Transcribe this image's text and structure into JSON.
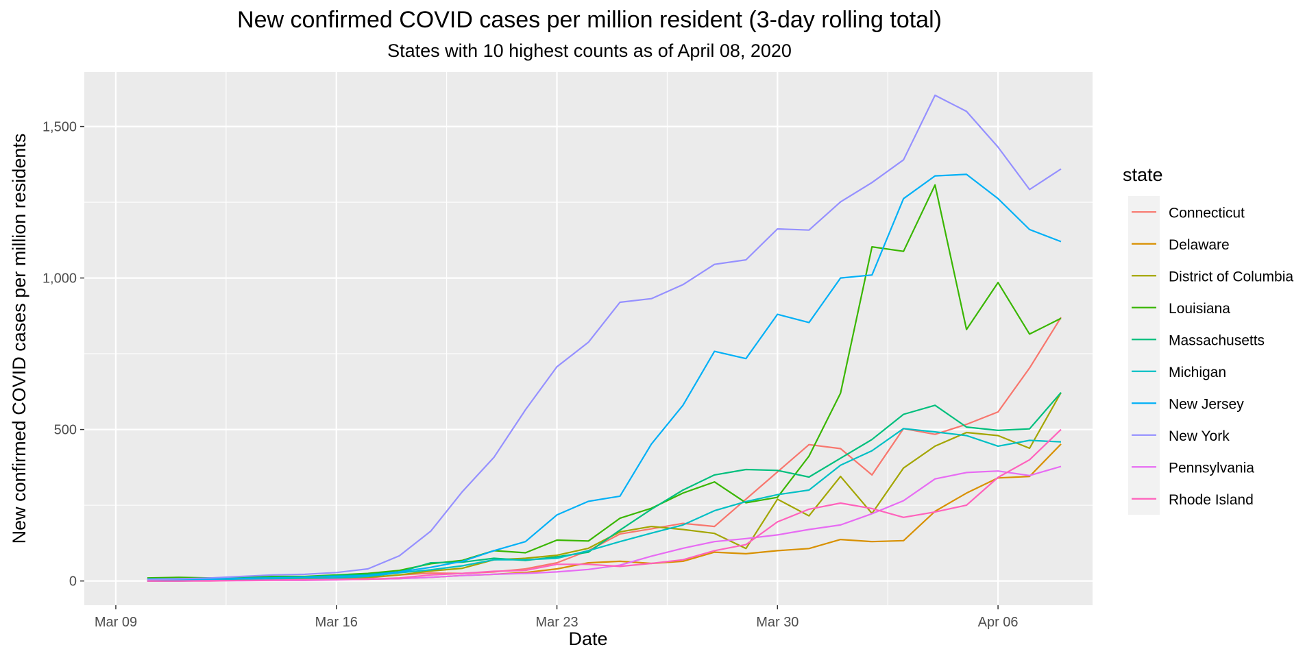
{
  "chart_data": {
    "type": "line",
    "title": "New confirmed COVID cases per million resident (3-day rolling total)",
    "subtitle": "States with 10 highest counts as of April 08, 2020",
    "xlabel": "Date",
    "ylabel": "New confirmed COVID cases per million residents",
    "x_ticks": [
      "Mar 09",
      "Mar 16",
      "Mar 23",
      "Mar 30",
      "Apr 06"
    ],
    "y_ticks": [
      "0",
      "500",
      "1,000",
      "1,500"
    ],
    "xlim": [
      "2020-03-08",
      "2020-04-09"
    ],
    "ylim": [
      -80,
      1680
    ],
    "grid": true,
    "legend_title": "state",
    "legend_position": "right",
    "x": [
      "2020-03-10",
      "2020-03-11",
      "2020-03-12",
      "2020-03-13",
      "2020-03-14",
      "2020-03-15",
      "2020-03-16",
      "2020-03-17",
      "2020-03-18",
      "2020-03-19",
      "2020-03-20",
      "2020-03-21",
      "2020-03-22",
      "2020-03-23",
      "2020-03-24",
      "2020-03-25",
      "2020-03-26",
      "2020-03-27",
      "2020-03-28",
      "2020-03-29",
      "2020-03-30",
      "2020-03-31",
      "2020-04-01",
      "2020-04-02",
      "2020-04-03",
      "2020-04-04",
      "2020-04-05",
      "2020-04-06",
      "2020-04-07",
      "2020-04-08"
    ],
    "series": [
      {
        "name": "Connecticut",
        "color": "#F8766D",
        "values": [
          0,
          2,
          3,
          5,
          7,
          7,
          6,
          10,
          20,
          26,
          25,
          30,
          40,
          60,
          100,
          155,
          172,
          190,
          180,
          270,
          360,
          450,
          437,
          350,
          503,
          484,
          517,
          558,
          703,
          870
        ]
      },
      {
        "name": "Delaware",
        "color": "#D89000",
        "values": [
          0,
          0,
          2,
          5,
          8,
          7,
          5,
          6,
          8,
          12,
          18,
          22,
          28,
          40,
          60,
          65,
          58,
          65,
          95,
          90,
          100,
          107,
          137,
          130,
          133,
          230,
          290,
          340,
          345,
          452
        ]
      },
      {
        "name": "District of Columbia",
        "color": "#A3A500",
        "values": [
          2,
          3,
          5,
          8,
          10,
          10,
          10,
          12,
          20,
          33,
          42,
          70,
          75,
          85,
          108,
          162,
          180,
          170,
          157,
          107,
          270,
          215,
          345,
          223,
          373,
          445,
          490,
          480,
          438,
          622
        ]
      },
      {
        "name": "Louisiana",
        "color": "#39B600",
        "values": [
          10,
          12,
          10,
          12,
          15,
          15,
          20,
          25,
          35,
          57,
          68,
          100,
          93,
          135,
          132,
          207,
          240,
          290,
          327,
          258,
          276,
          412,
          620,
          1103,
          1088,
          1307,
          830,
          985,
          815,
          867
        ]
      },
      {
        "name": "Massachusetts",
        "color": "#00BF7D",
        "values": [
          8,
          8,
          7,
          10,
          12,
          14,
          18,
          22,
          30,
          60,
          62,
          75,
          68,
          80,
          95,
          168,
          237,
          300,
          350,
          368,
          365,
          343,
          405,
          467,
          550,
          580,
          508,
          497,
          502,
          622
        ]
      },
      {
        "name": "Michigan",
        "color": "#00BFC4",
        "values": [
          0,
          0,
          1,
          3,
          5,
          6,
          10,
          15,
          27,
          37,
          50,
          70,
          70,
          75,
          100,
          130,
          158,
          185,
          232,
          262,
          285,
          300,
          382,
          430,
          503,
          492,
          480,
          445,
          464,
          459
        ]
      },
      {
        "name": "New Jersey",
        "color": "#00B0F6",
        "values": [
          3,
          4,
          6,
          8,
          10,
          12,
          15,
          18,
          30,
          45,
          65,
          100,
          130,
          218,
          263,
          280,
          452,
          580,
          758,
          734,
          880,
          853,
          1000,
          1010,
          1262,
          1337,
          1342,
          1262,
          1160,
          1120
        ]
      },
      {
        "name": "New York",
        "color": "#9590FF",
        "values": [
          5,
          7,
          10,
          15,
          20,
          22,
          28,
          40,
          83,
          165,
          295,
          408,
          565,
          707,
          788,
          920,
          932,
          978,
          1045,
          1060,
          1162,
          1158,
          1251,
          1315,
          1390,
          1603,
          1550,
          1432,
          1292,
          1360
        ]
      },
      {
        "name": "Pennsylvania",
        "color": "#E76BF3",
        "values": [
          0,
          0,
          1,
          1,
          2,
          2,
          4,
          6,
          8,
          12,
          18,
          22,
          25,
          30,
          38,
          52,
          82,
          108,
          130,
          140,
          152,
          170,
          185,
          222,
          265,
          337,
          358,
          363,
          348,
          378
        ]
      },
      {
        "name": "Rhode Island",
        "color": "#FF62BC",
        "values": [
          0,
          0,
          0,
          2,
          3,
          4,
          5,
          6,
          10,
          20,
          25,
          32,
          35,
          55,
          55,
          48,
          58,
          70,
          100,
          120,
          195,
          237,
          257,
          239,
          210,
          228,
          250,
          342,
          400,
          500
        ]
      }
    ]
  }
}
